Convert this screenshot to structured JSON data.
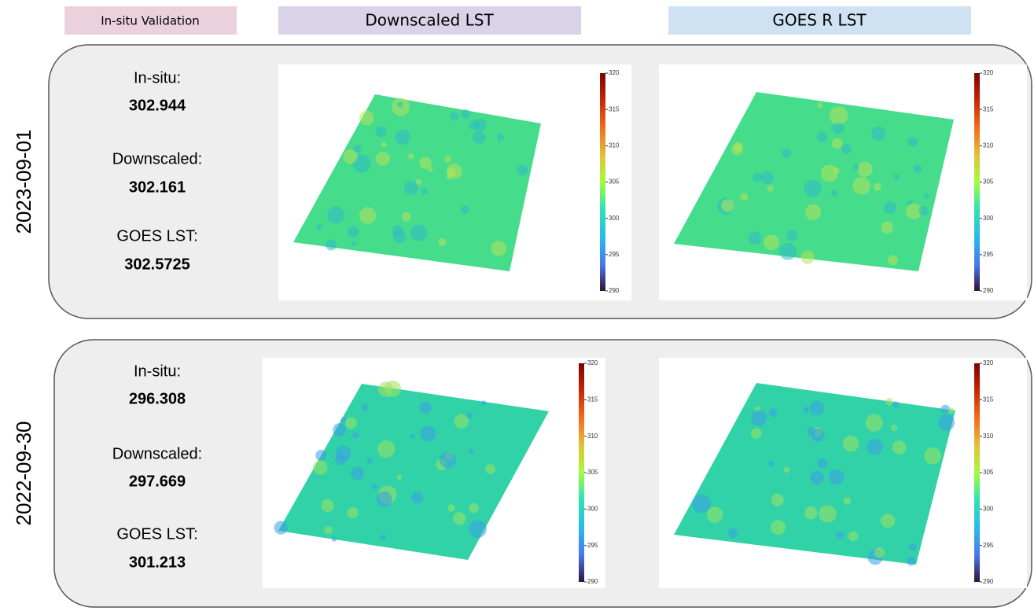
{
  "headers": [
    "In-situ Validation",
    "Downscaled LST",
    "GOES R LST"
  ],
  "rows": [
    {
      "date": "2023-09-01",
      "stats": [
        {
          "label": "In-situ:",
          "value": 302.944
        },
        {
          "label": "Downscaled:",
          "value": 302.161
        },
        {
          "label": "GOES LST:",
          "value": 302.5725
        }
      ]
    },
    {
      "date": "2022-09-30",
      "stats": [
        {
          "label": "In-situ:",
          "value": 296.308
        },
        {
          "label": "Downscaled:",
          "value": 297.669
        },
        {
          "label": "GOES LST:",
          "value": 301.213
        }
      ]
    }
  ],
  "colorbar_ticks": [
    320,
    315,
    310,
    305,
    300,
    295,
    290
  ]
}
